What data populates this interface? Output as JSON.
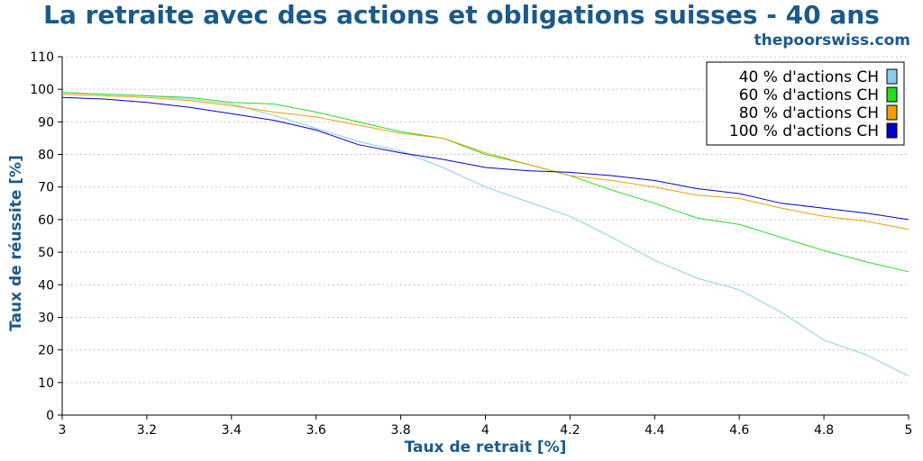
{
  "header": {
    "title": "La retraite avec des actions et obligations suisses - 40 ans",
    "site": "thepoorswiss.com"
  },
  "chart_data": {
    "type": "line",
    "title": "La retraite avec des actions et obligations suisses - 40 ans",
    "xlabel": "Taux de retrait [%]",
    "ylabel": "Taux de réussite [%]",
    "xlim": [
      3,
      5
    ],
    "ylim": [
      0,
      110
    ],
    "xticks": [
      "3",
      "3.2",
      "3.4",
      "3.6",
      "3.8",
      "4",
      "4.2",
      "4.4",
      "4.6",
      "4.8",
      "5"
    ],
    "yticks": [
      "0",
      "10",
      "20",
      "30",
      "40",
      "50",
      "60",
      "70",
      "80",
      "90",
      "100",
      "110"
    ],
    "grid": true,
    "legend_position": "top-right",
    "x": [
      3.0,
      3.1,
      3.2,
      3.3,
      3.4,
      3.5,
      3.6,
      3.7,
      3.8,
      3.9,
      4.0,
      4.1,
      4.2,
      4.3,
      4.4,
      4.5,
      4.6,
      4.7,
      4.8,
      4.9,
      5.0
    ],
    "series": [
      {
        "name": "40 % d'actions CH",
        "color": "#87ceeb",
        "values": [
          99,
          98.5,
          98,
          97,
          95.5,
          92,
          88,
          84,
          81,
          76,
          70,
          65.5,
          61,
          54.5,
          47.5,
          42,
          38.5,
          31.5,
          23,
          18.5,
          12
        ]
      },
      {
        "name": "60 % d'actions CH",
        "color": "#22dd22",
        "values": [
          99,
          98.5,
          98,
          97.5,
          96,
          95.5,
          93,
          90,
          87,
          85,
          80,
          77,
          73.5,
          69,
          65,
          60.5,
          58.5,
          54.5,
          50.5,
          47,
          44
        ]
      },
      {
        "name": "80 % d'actions CH",
        "color": "#f0a000",
        "values": [
          98.5,
          98,
          97.5,
          96.5,
          95,
          93,
          91.5,
          89,
          86.5,
          85,
          80.5,
          77,
          73.5,
          72,
          70,
          67.5,
          66.5,
          63.5,
          61,
          59.5,
          57
        ]
      },
      {
        "name": "100 % d'actions CH",
        "color": "#0000cc",
        "values": [
          97.5,
          97,
          96,
          94.5,
          92.5,
          90.5,
          87.5,
          83,
          80.5,
          78.5,
          76,
          75,
          74.5,
          73.5,
          72,
          69.5,
          68,
          65,
          63.5,
          62,
          60
        ]
      }
    ]
  }
}
